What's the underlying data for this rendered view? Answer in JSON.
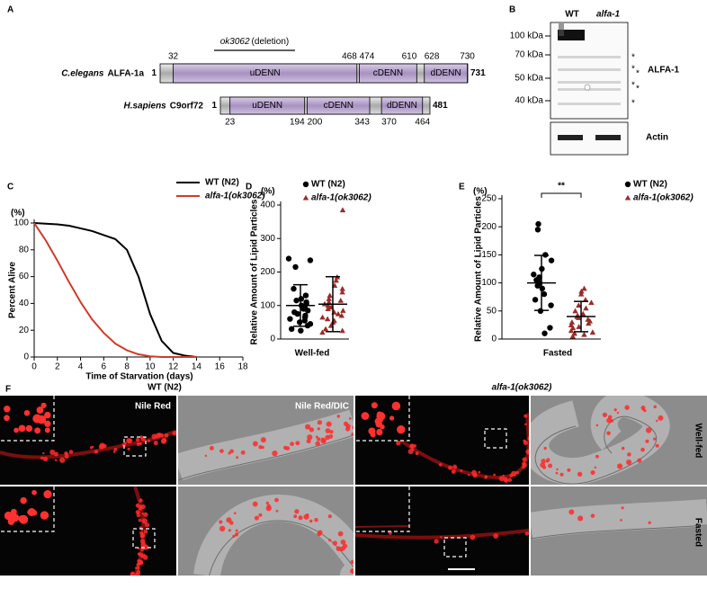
{
  "panel_a": {
    "label": "A",
    "deletion_allele": "ok3062",
    "deletion_note": "(deletion)",
    "proteins": [
      {
        "species": "C.elegans",
        "protein": "ALFA-1a",
        "start": 1,
        "end": 731,
        "domains": [
          {
            "name": "uDENN",
            "start": 32,
            "end": 468
          },
          {
            "name": "cDENN",
            "start": 474,
            "end": 610
          },
          {
            "name": "dDENN",
            "start": 628,
            "end": 730
          }
        ]
      },
      {
        "species": "H.sapiens",
        "protein": "C9orf72",
        "start": 1,
        "end": 481,
        "domains": [
          {
            "name": "uDENN",
            "start": 23,
            "end": 194
          },
          {
            "name": "cDENN",
            "start": 200,
            "end": 343
          },
          {
            "name": "dDENN",
            "start": 370,
            "end": 464
          }
        ]
      }
    ]
  },
  "panel_b": {
    "label": "B",
    "lanes": [
      "WT",
      "alfa-1"
    ],
    "markers": [
      "100 kDa",
      "70 kDa",
      "50 kDa",
      "40 kDa"
    ],
    "asterisks": [
      "*",
      "*",
      "*",
      "*",
      "*",
      "*"
    ],
    "blot_label": "ALFA-1",
    "loading_label": "Actin"
  },
  "chart_data": [
    {
      "type": "line",
      "panel_label": "C",
      "y_unit": "(%)",
      "ylabel": "Percent Alive",
      "xlabel": "Time of Starvation (days)",
      "x": [
        0,
        1,
        2,
        3,
        4,
        5,
        6,
        7,
        8,
        9,
        10,
        11,
        12,
        13,
        14
      ],
      "series": [
        {
          "name": "WT (N2)",
          "color": "#000000",
          "values": [
            100,
            99.5,
            99,
            98,
            96,
            94,
            91,
            88,
            80,
            60,
            32,
            12,
            3,
            1,
            0
          ]
        },
        {
          "name": "alfa-1(ok3062)",
          "color": "#d23a2a",
          "values": [
            100,
            87,
            72,
            56,
            41,
            28,
            18,
            10,
            5,
            2,
            0.5,
            0,
            0,
            0,
            0
          ]
        }
      ],
      "xlim": [
        0,
        18
      ],
      "xticks": [
        0,
        2,
        4,
        6,
        8,
        10,
        12,
        14,
        16,
        18
      ],
      "ylim": [
        0,
        100
      ],
      "yticks": [
        0,
        20,
        40,
        60,
        80,
        100
      ]
    },
    {
      "type": "strip",
      "panel_label": "D",
      "y_unit": "(%)",
      "ylabel": "Relative Amount of Lipid Particles",
      "xlabel": "Well-fed",
      "series": [
        {
          "name": "WT (N2)",
          "color": "#000000",
          "marker": "circle",
          "mean": 100,
          "sd": 62,
          "values": [
            240,
            235,
            215,
            150,
            130,
            120,
            115,
            110,
            105,
            100,
            95,
            90,
            85,
            80,
            75,
            70,
            65,
            60,
            55,
            50,
            45,
            40,
            30,
            25
          ]
        },
        {
          "name": "alfa-1(ok3062)",
          "color": "#9b2a2a",
          "marker": "triangle",
          "mean": 104,
          "sd": 82,
          "values": [
            385,
            185,
            175,
            160,
            150,
            140,
            130,
            120,
            115,
            110,
            105,
            100,
            95,
            90,
            85,
            80,
            75,
            70,
            65,
            60,
            55,
            50,
            40,
            30,
            25,
            20
          ]
        }
      ],
      "ylim": [
        0,
        400
      ],
      "yticks": [
        0,
        100,
        200,
        300,
        400
      ]
    },
    {
      "type": "strip",
      "panel_label": "E",
      "y_unit": "(%)",
      "ylabel": "Relative Amount of Lipid Particles",
      "xlabel": "Fasted",
      "annotation": "**",
      "series": [
        {
          "name": "WT (N2)",
          "color": "#000000",
          "marker": "circle",
          "mean": 100,
          "sd": 49,
          "values": [
            205,
            195,
            150,
            140,
            125,
            115,
            110,
            105,
            100,
            100,
            95,
            90,
            80,
            70,
            60,
            50,
            20,
            10
          ]
        },
        {
          "name": "alfa-1(ok3062)",
          "color": "#9b2a2a",
          "marker": "triangle",
          "mean": 40,
          "sd": 27,
          "values": [
            90,
            85,
            80,
            70,
            65,
            60,
            55,
            50,
            45,
            42,
            40,
            38,
            35,
            32,
            30,
            28,
            25,
            22,
            20,
            15,
            12,
            10,
            8,
            5
          ]
        }
      ],
      "ylim": [
        0,
        250
      ],
      "yticks": [
        0,
        50,
        100,
        150,
        200,
        250
      ]
    }
  ],
  "panel_f": {
    "label": "F",
    "genotypes": [
      "WT (N2)",
      "alfa-1(ok3062)"
    ],
    "channels": [
      "Nile Red",
      "Nile Red/DIC"
    ],
    "conditions": [
      "Well-fed",
      "Fasted"
    ]
  }
}
